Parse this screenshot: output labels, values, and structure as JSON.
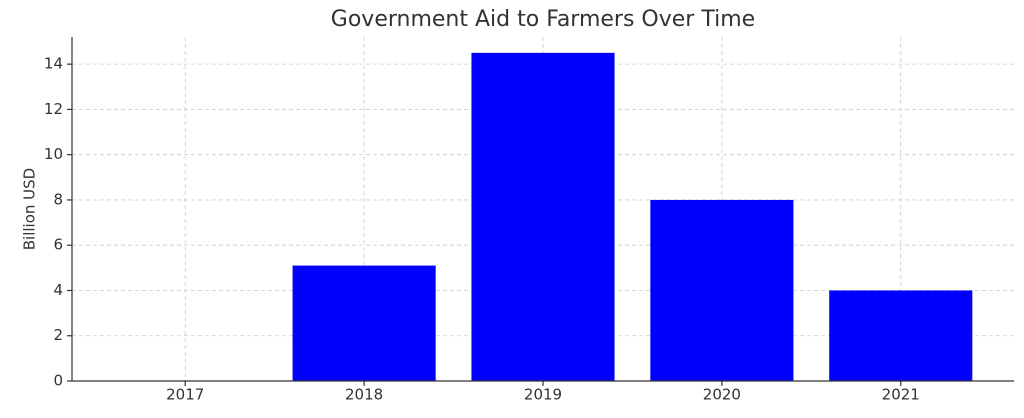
{
  "chart_data": {
    "type": "bar",
    "title": "Government Aid to Farmers Over Time",
    "y_label": "Billion USD",
    "categories": [
      "2017",
      "2018",
      "2019",
      "2020",
      "2021"
    ],
    "values": [
      0,
      5.1,
      14.5,
      8,
      4
    ],
    "color": "#0000ff",
    "ylim": [
      0,
      15.2
    ],
    "yticks": [
      0,
      2,
      4,
      6,
      8,
      10,
      12,
      14
    ],
    "grid": true
  }
}
